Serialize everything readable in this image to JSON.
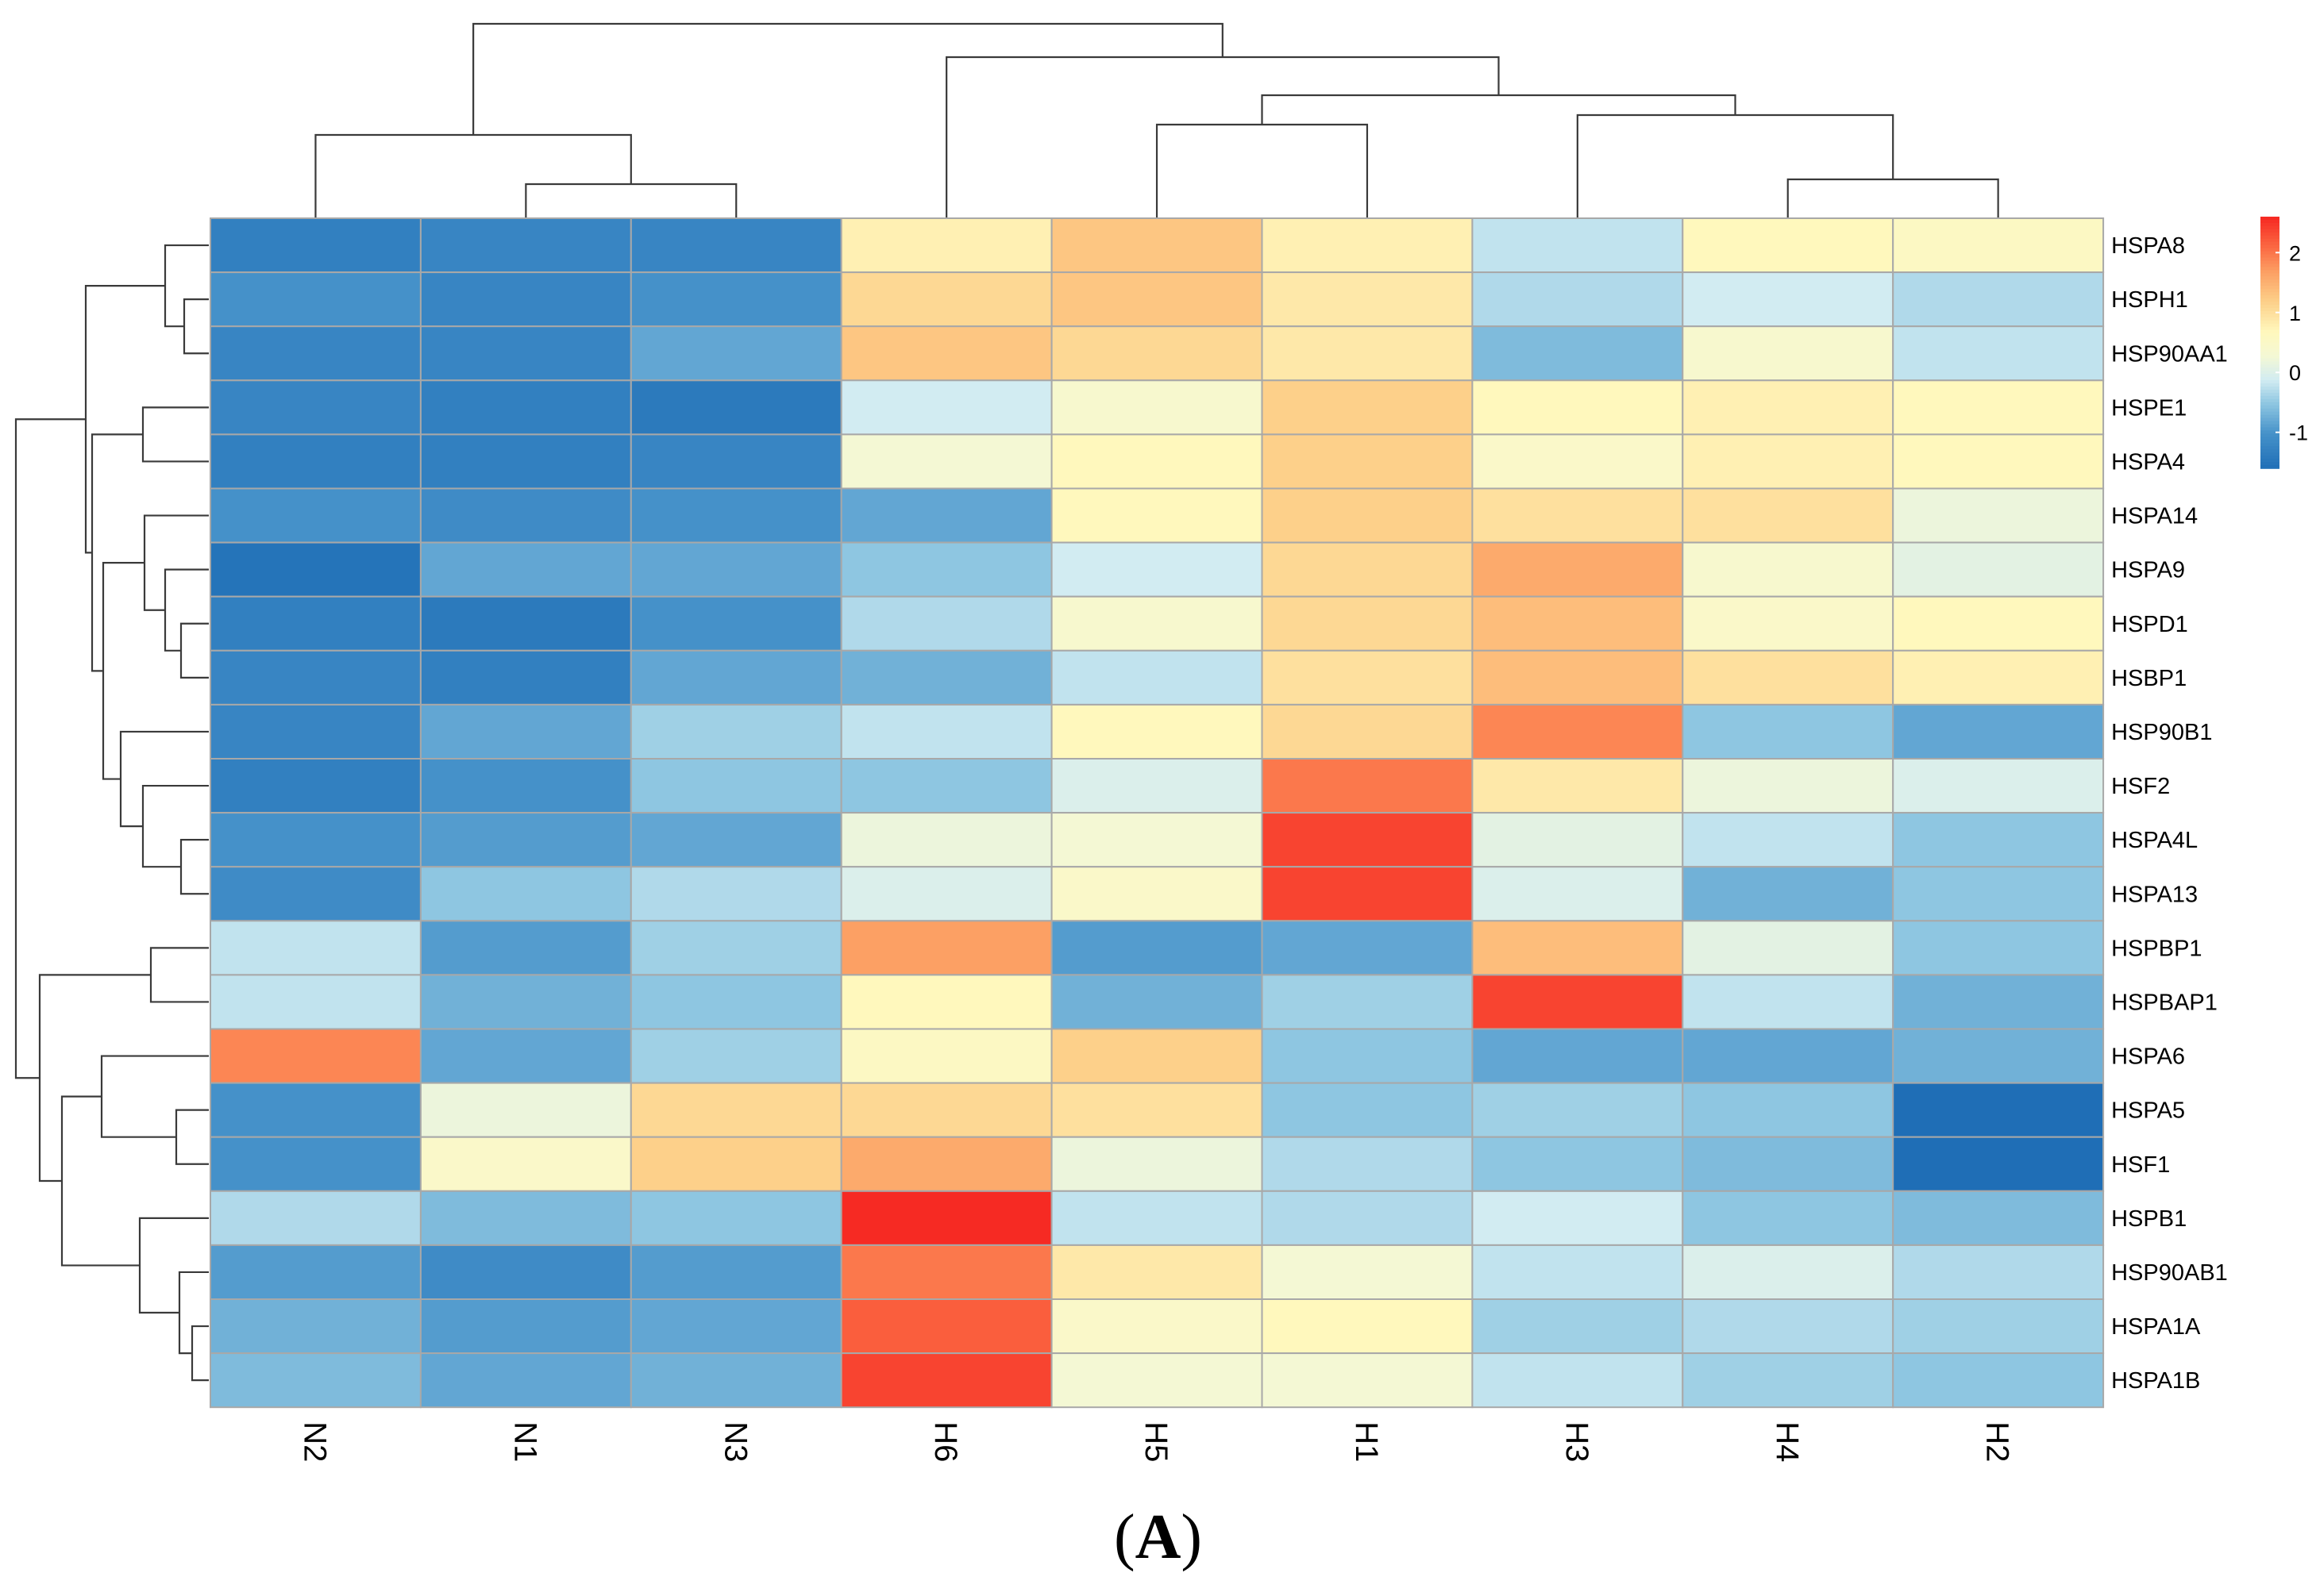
{
  "chart_data": {
    "type": "heatmap",
    "title": "",
    "caption": "A",
    "columns": [
      "N2",
      "N1",
      "N3",
      "H6",
      "H5",
      "H1",
      "H3",
      "H4",
      "H2"
    ],
    "rows": [
      "HSPA8",
      "HSPH1",
      "HSP90AA1",
      "HSPE1",
      "HSPA4",
      "HSPA14",
      "HSPA9",
      "HSPD1",
      "HSBP1",
      "HSP90B1",
      "HSF2",
      "HSPA4L",
      "HSPA13",
      "HSPBP1",
      "HSPBAP1",
      "HSPA6",
      "HSPA5",
      "HSF1",
      "HSPB1",
      "HSP90AB1",
      "HSPA1A",
      "HSPA1B"
    ],
    "values": [
      [
        -1.3,
        -1.2,
        -1.2,
        0.8,
        1.3,
        0.8,
        -0.2,
        0.7,
        0.6
      ],
      [
        -1.0,
        -1.2,
        -1.0,
        1.1,
        1.3,
        0.9,
        -0.3,
        -0.1,
        -0.3
      ],
      [
        -1.2,
        -1.2,
        -0.8,
        1.3,
        1.1,
        0.9,
        -0.6,
        0.4,
        -0.2
      ],
      [
        -1.2,
        -1.3,
        -1.4,
        -0.1,
        0.4,
        1.2,
        0.7,
        0.8,
        0.7
      ],
      [
        -1.3,
        -1.3,
        -1.2,
        0.3,
        0.7,
        1.2,
        0.5,
        0.8,
        0.7
      ],
      [
        -1.0,
        -1.1,
        -1.0,
        -0.8,
        0.7,
        1.2,
        1.0,
        1.0,
        0.2
      ],
      [
        -1.5,
        -0.8,
        -0.8,
        -0.5,
        -0.1,
        1.1,
        1.6,
        0.4,
        0.1
      ],
      [
        -1.3,
        -1.4,
        -1.0,
        -0.3,
        0.4,
        1.1,
        1.4,
        0.5,
        0.7
      ],
      [
        -1.2,
        -1.3,
        -0.8,
        -0.7,
        -0.2,
        1.0,
        1.4,
        1.0,
        0.8
      ],
      [
        -1.2,
        -0.8,
        -0.4,
        -0.2,
        0.7,
        1.1,
        1.9,
        -0.5,
        -0.8
      ],
      [
        -1.3,
        -1.0,
        -0.5,
        -0.5,
        0.0,
        2.0,
        0.9,
        0.2,
        0.0
      ],
      [
        -1.0,
        -0.9,
        -0.8,
        0.2,
        0.3,
        2.4,
        0.1,
        -0.2,
        -0.5
      ],
      [
        -1.1,
        -0.5,
        -0.3,
        0.0,
        0.5,
        2.4,
        0.0,
        -0.7,
        -0.5
      ],
      [
        -0.2,
        -0.9,
        -0.4,
        1.7,
        -0.9,
        -0.8,
        1.4,
        0.1,
        -0.5
      ],
      [
        -0.2,
        -0.7,
        -0.5,
        0.7,
        -0.7,
        -0.4,
        2.4,
        -0.2,
        -0.7
      ],
      [
        1.9,
        -0.8,
        -0.4,
        0.6,
        1.2,
        -0.5,
        -0.8,
        -0.8,
        -0.7
      ],
      [
        -1.0,
        0.2,
        1.1,
        1.1,
        1.0,
        -0.5,
        -0.4,
        -0.5,
        -1.6
      ],
      [
        -1.0,
        0.5,
        1.2,
        1.6,
        0.2,
        -0.3,
        -0.5,
        -0.6,
        -1.6
      ],
      [
        -0.3,
        -0.6,
        -0.5,
        2.6,
        -0.2,
        -0.3,
        -0.1,
        -0.5,
        -0.6
      ],
      [
        -0.9,
        -1.1,
        -0.9,
        2.0,
        0.9,
        0.3,
        -0.2,
        0.0,
        -0.3
      ],
      [
        -0.7,
        -0.9,
        -0.8,
        2.2,
        0.5,
        0.7,
        -0.4,
        -0.3,
        -0.4
      ],
      [
        -0.6,
        -0.8,
        -0.7,
        2.4,
        0.3,
        0.3,
        -0.2,
        -0.4,
        -0.5
      ]
    ],
    "scale": {
      "min": -1.6,
      "max": 2.6,
      "ticks": [
        -1,
        0,
        1,
        2
      ],
      "tick_labels": [
        "-1",
        "0",
        "1",
        "2"
      ],
      "colors": [
        "#2166ac",
        "#67a9cf",
        "#d1e5f0",
        "#fefecb",
        "#fddbc7",
        "#ef8a62",
        "#f62a23"
      ]
    },
    "colormap": {
      "low": "#1f6eb6",
      "mid_low": "#b8deee",
      "mid": "#ffffc4",
      "mid_high": "#fdc983",
      "high": "#f62a23"
    },
    "legend": {
      "placement": "right"
    },
    "dendrogram_columns": {
      "leaf_order": [
        "N2",
        "N1",
        "N3",
        "H6",
        "H5",
        "H1",
        "H3",
        "H4",
        "H2"
      ],
      "merges": [
        [
          "N1",
          "N3",
          0.6
        ],
        [
          "N2",
          "N1+N3",
          1.0
        ],
        [
          "H4",
          "H2",
          0.4
        ],
        [
          "H3",
          "H4+H2",
          0.9
        ],
        [
          "H5",
          "H1",
          0.9
        ],
        [
          "H5+H1",
          "H3+H4+H2",
          1.2
        ],
        [
          "H6",
          "H5+H1+H3+H4+H2",
          1.4
        ],
        [
          "N2+N1+N3",
          "H",
          1.9
        ]
      ]
    },
    "dendrogram_rows": {
      "leaf_order": [
        "HSPA8",
        "HSPH1",
        "HSP90AA1",
        "HSPE1",
        "HSPA4",
        "HSPA14",
        "HSPA9",
        "HSPD1",
        "HSBP1",
        "HSP90B1",
        "HSF2",
        "HSPA4L",
        "HSPA13",
        "HSPBP1",
        "HSPBAP1",
        "HSPA6",
        "HSPA5",
        "HSF1",
        "HSPB1",
        "HSP90AB1",
        "HSPA1A",
        "HSPA1B"
      ]
    }
  }
}
